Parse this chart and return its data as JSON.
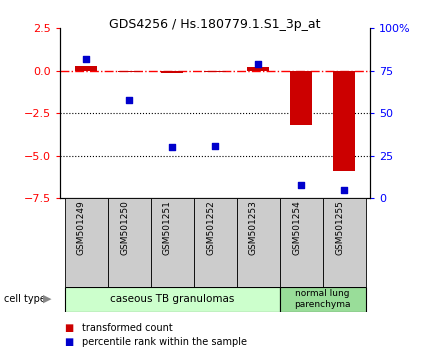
{
  "title": "GDS4256 / Hs.180779.1.S1_3p_at",
  "samples": [
    "GSM501249",
    "GSM501250",
    "GSM501251",
    "GSM501252",
    "GSM501253",
    "GSM501254",
    "GSM501255"
  ],
  "transformed_count": [
    0.3,
    -0.1,
    -0.15,
    -0.1,
    0.2,
    -3.2,
    -5.9
  ],
  "percentile_rank": [
    82,
    58,
    30,
    31,
    79,
    8,
    5
  ],
  "ylim_left": [
    -7.5,
    2.5
  ],
  "ylim_right": [
    0,
    100
  ],
  "yticks_left": [
    2.5,
    0,
    -2.5,
    -5.0,
    -7.5
  ],
  "yticks_right": [
    100,
    75,
    50,
    25,
    0
  ],
  "ytick_labels_right": [
    "100%",
    "75",
    "50",
    "25",
    "0"
  ],
  "hlines": [
    -2.5,
    -5.0
  ],
  "bar_color": "#cc0000",
  "marker_color": "#0000cc",
  "group1_n": 5,
  "group2_n": 2,
  "group1_label": "caseous TB granulomas",
  "group2_label": "normal lung\nparenchyma",
  "group1_color": "#ccffcc",
  "group2_color": "#99dd99",
  "sample_box_color": "#cccccc",
  "cell_type_label": "cell type",
  "legend_red_label": "transformed count",
  "legend_blue_label": "percentile rank within the sample",
  "bar_width": 0.5,
  "marker_size": 18
}
